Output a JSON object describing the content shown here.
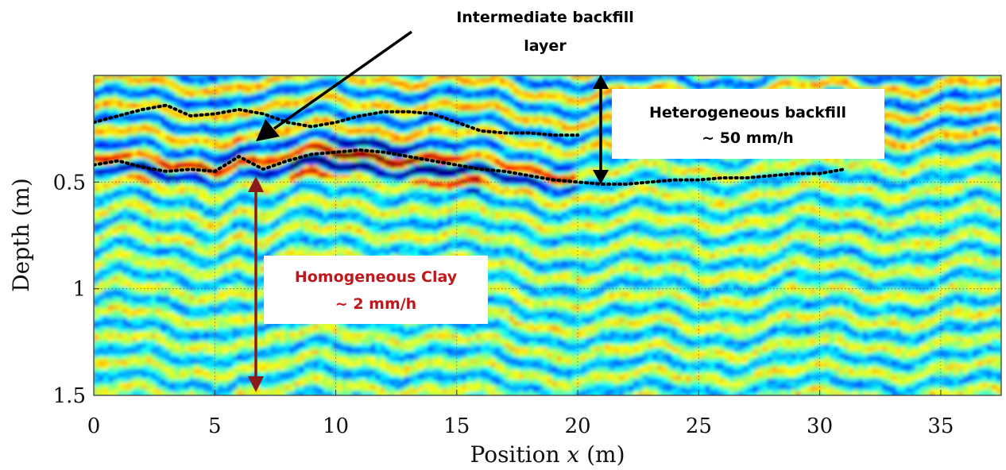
{
  "chart_data": {
    "type": "heatmap",
    "title": "",
    "xlabel_prefix": "Position ",
    "xlabel_var": "x",
    "xlabel_suffix": " (m)",
    "ylabel": "Depth (m)",
    "xlim": [
      0,
      37.5
    ],
    "ylim": [
      0,
      1.5
    ],
    "x_ticks": [
      0,
      5,
      10,
      15,
      20,
      25,
      30,
      35
    ],
    "x_tick_labels": [
      "0",
      "5",
      "10",
      "15",
      "20",
      "25",
      "30",
      "35"
    ],
    "y_ticks": [
      0.5,
      1,
      1.5
    ],
    "y_tick_labels": [
      "0.5",
      "1",
      "1.5"
    ],
    "grid": true,
    "colormap": "jet",
    "boundary_upper": {
      "x": [
        0,
        1,
        2,
        3,
        4,
        5,
        6,
        7,
        8,
        9,
        10,
        11,
        12,
        13,
        14,
        15,
        16,
        17,
        18,
        19,
        20
      ],
      "depth": [
        0.22,
        0.19,
        0.16,
        0.14,
        0.19,
        0.18,
        0.16,
        0.18,
        0.22,
        0.24,
        0.22,
        0.19,
        0.17,
        0.17,
        0.18,
        0.22,
        0.26,
        0.27,
        0.27,
        0.28,
        0.28
      ]
    },
    "boundary_lower": {
      "x": [
        0,
        1,
        2,
        3,
        4,
        5,
        6,
        7,
        8,
        9,
        10,
        11,
        12,
        13,
        14,
        15,
        16,
        17,
        18,
        19,
        20,
        21,
        22,
        23,
        24,
        25,
        26,
        27,
        28,
        29,
        30,
        31
      ],
      "depth": [
        0.42,
        0.4,
        0.43,
        0.45,
        0.44,
        0.45,
        0.38,
        0.44,
        0.4,
        0.37,
        0.36,
        0.35,
        0.36,
        0.38,
        0.4,
        0.42,
        0.44,
        0.45,
        0.47,
        0.49,
        0.5,
        0.51,
        0.51,
        0.5,
        0.49,
        0.49,
        0.48,
        0.48,
        0.47,
        0.46,
        0.46,
        0.44
      ]
    },
    "annotations": [
      {
        "lines": [
          "Intermediate backfill",
          "layer"
        ],
        "color": "#000000"
      },
      {
        "lines": [
          "Heterogeneous backfill",
          "~ 50 mm/h"
        ],
        "color": "#000000"
      },
      {
        "lines": [
          "Homogeneous Clay",
          "~ 2 mm/h"
        ],
        "color": "#c0171c"
      }
    ],
    "colors": {
      "dark_red_arrow": "#8b1a1a",
      "black_arrow": "#000000",
      "boundary_line": "#000000"
    }
  }
}
